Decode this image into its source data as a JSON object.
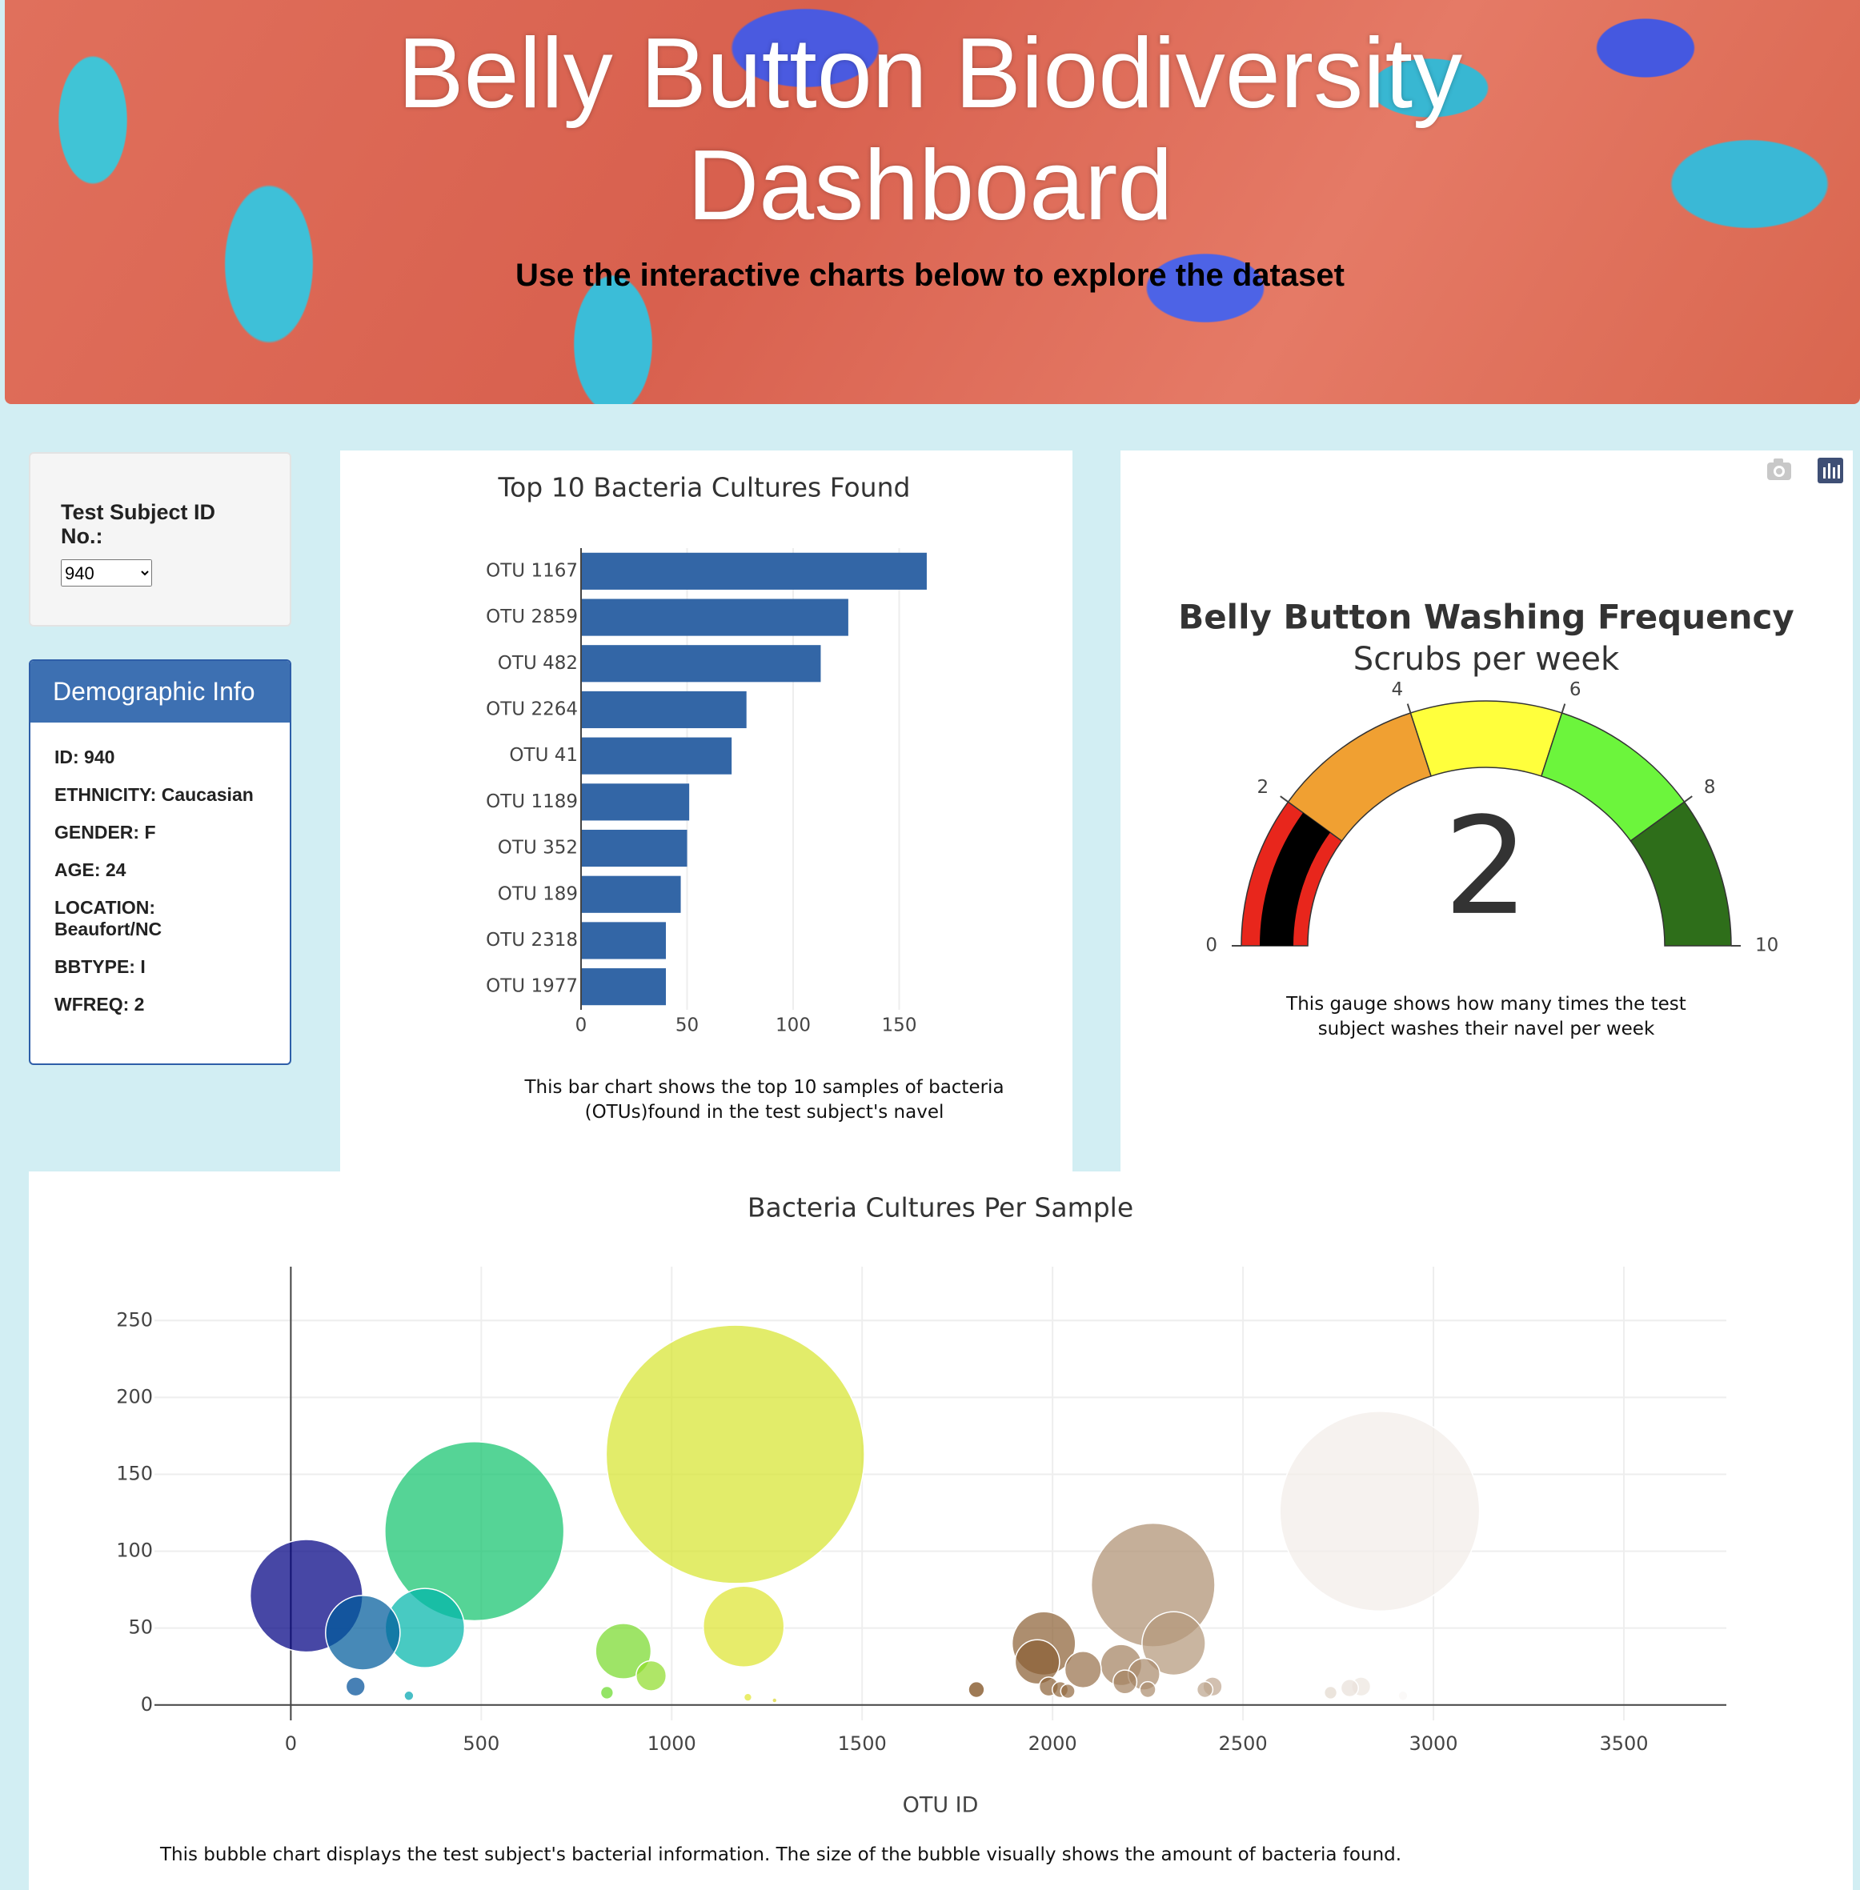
{
  "header": {
    "title": "Belly Button Biodiversity Dashboard",
    "subtitle": "Use the interactive charts below to explore the dataset"
  },
  "selector": {
    "label": "Test Subject ID No.:",
    "value": "940"
  },
  "demographics": {
    "title": "Demographic Info",
    "lines": [
      "ID: 940",
      "ETHNICITY: Caucasian",
      "GENDER: F",
      "AGE: 24",
      "LOCATION: Beaufort/NC",
      "BBTYPE: I",
      "WFREQ: 2"
    ]
  },
  "chart_data": [
    {
      "type": "hbar",
      "title": "Top 10 Bacteria Cultures Found",
      "categories": [
        "OTU 1167",
        "OTU 2859",
        "OTU 482",
        "OTU 2264",
        "OTU 41",
        "OTU 1189",
        "OTU 352",
        "OTU 189",
        "OTU 2318",
        "OTU 1977"
      ],
      "values": [
        163,
        126,
        113,
        78,
        71,
        51,
        50,
        47,
        40,
        40
      ],
      "color": "#3366a6",
      "xlim": [
        0,
        175
      ],
      "xticks": [
        0,
        50,
        100,
        150
      ],
      "grid": true,
      "caption": "This bar chart shows the top 10 samples of bacteria (OTUs)found in the test subject's navel"
    },
    {
      "type": "gauge",
      "title": "Belly Button Washing Frequency",
      "subtitle": "Scrubs per week",
      "value": 2,
      "range": [
        0,
        10
      ],
      "ticks": [
        0,
        2,
        4,
        6,
        8,
        10
      ],
      "bar_color": "#000000",
      "steps": [
        {
          "range": [
            0,
            2
          ],
          "color": "#e8261c"
        },
        {
          "range": [
            2,
            4
          ],
          "color": "#f0a032"
        },
        {
          "range": [
            4,
            6
          ],
          "color": "#ffff3c"
        },
        {
          "range": [
            6,
            8
          ],
          "color": "#6cf53c"
        },
        {
          "range": [
            8,
            10
          ],
          "color": "#2e6e1a"
        }
      ],
      "caption": "This gauge shows how many times the test subject washes their navel per week"
    },
    {
      "type": "bubble",
      "title": "Bacteria Cultures Per Sample",
      "x_label": "OTU ID",
      "x": [
        1167,
        2859,
        482,
        2264,
        41,
        1189,
        352,
        189,
        2318,
        1977,
        873,
        1960,
        2180,
        2080,
        2240,
        946,
        2190,
        170,
        1990,
        2810,
        2420,
        2780,
        1800,
        2250,
        2400,
        2020,
        2040,
        830,
        2730,
        2970,
        310,
        2920,
        1200,
        1270
      ],
      "y": [
        163,
        126,
        113,
        78,
        71,
        51,
        50,
        47,
        40,
        40,
        35,
        28,
        26,
        23,
        20,
        19,
        15,
        12,
        12,
        12,
        12,
        11,
        10,
        10,
        10,
        10,
        9,
        8,
        8,
        7,
        6,
        6,
        5,
        3
      ],
      "colorscale": [
        [
          0,
          "#000082"
        ],
        [
          0.1,
          "#00b4b4"
        ],
        [
          0.2,
          "#28d228"
        ],
        [
          0.4,
          "#e6e632"
        ],
        [
          0.6,
          "#784614"
        ],
        [
          1,
          "#ffffff"
        ]
      ],
      "opacity": 0.72,
      "xlim": [
        -358,
        3769
      ],
      "ylim": [
        -10,
        285
      ],
      "xticks": [
        0,
        500,
        1000,
        1500,
        2000,
        2500,
        3000,
        3500
      ],
      "yticks": [
        0,
        50,
        100,
        150,
        200,
        250
      ],
      "grid": true,
      "caption": "This bubble chart displays the test subject's bacterial information. The size of the bubble visually shows the amount of bacteria found."
    }
  ]
}
